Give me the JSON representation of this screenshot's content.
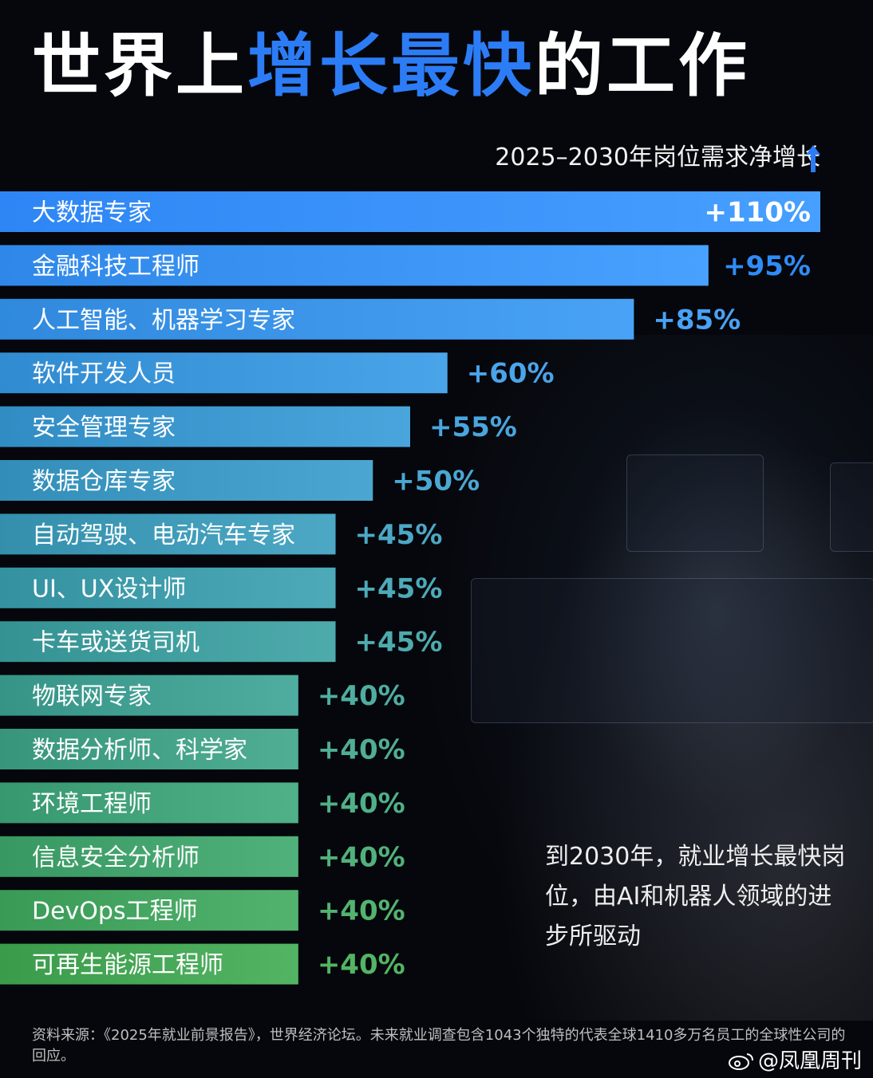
{
  "title": {
    "prefix": "世界上",
    "highlight": "增长最快",
    "suffix": "的工作"
  },
  "subtitle": "2025–2030年岗位需求净增长",
  "icons": {
    "subtitle_arrow": "up-arrow-icon",
    "watermark": "weibo-icon"
  },
  "colors": {
    "title_highlight": "#2c7cf6",
    "bar_top": "#2e86f5",
    "bar_bottom": "#3a9b4a"
  },
  "chart_data": {
    "type": "bar",
    "orientation": "horizontal",
    "title": "世界上增长最快的工作",
    "subtitle": "2025–2030年岗位需求净增长",
    "unit": "%",
    "categories": [
      "大数据专家",
      "金融科技工程师",
      "人工智能、机器学习专家",
      "软件开发人员",
      "安全管理专家",
      "数据仓库专家",
      "自动驾驶、电动汽车专家",
      "UI、UX设计师",
      "卡车或送货司机",
      "物联网专家",
      "数据分析师、科学家",
      "环境工程师",
      "信息安全分析师",
      "DevOps工程师",
      "可再生能源工程师"
    ],
    "values": [
      110,
      95,
      85,
      60,
      55,
      50,
      45,
      45,
      45,
      40,
      40,
      40,
      40,
      40,
      40
    ],
    "value_labels": [
      "+110%",
      "+95%",
      "+85%",
      "+60%",
      "+55%",
      "+50%",
      "+45%",
      "+45%",
      "+45%",
      "+40%",
      "+40%",
      "+40%",
      "+40%",
      "+40%",
      "+40%"
    ],
    "grid": false
  },
  "note": "到2030年，就业增长最快岗位，由AI和机器人领域的进步所驱动",
  "source": "资料来源：《2025年就业前景报告》，世界经济论坛。未来就业调查包含1043个独特的代表全球1410多万名员工的全球性公司的回应。",
  "watermark": "@凤凰周刊"
}
